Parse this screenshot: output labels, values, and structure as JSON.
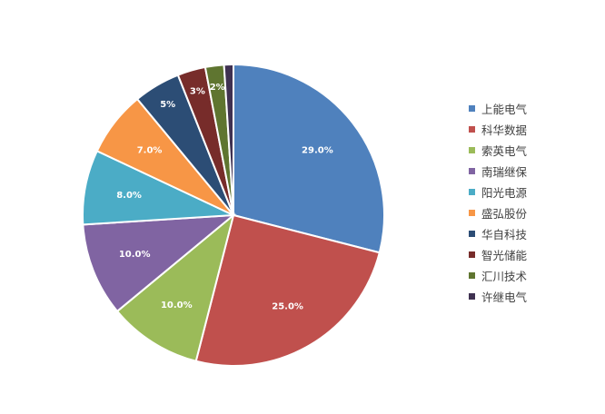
{
  "chart_data": {
    "type": "pie",
    "title": "",
    "slices": [
      {
        "name": "上能电气",
        "value": 29.0,
        "label": "29.0%",
        "color": "#4F81BD"
      },
      {
        "name": "科华数据",
        "value": 25.0,
        "label": "25.0%",
        "color": "#C0504D"
      },
      {
        "name": "索英电气",
        "value": 10.0,
        "label": "10.0%",
        "color": "#9BBB59"
      },
      {
        "name": "南瑞继保",
        "value": 10.0,
        "label": "10.0%",
        "color": "#8064A2"
      },
      {
        "name": "阳光电源",
        "value": 8.0,
        "label": "8.0%",
        "color": "#4BACC6"
      },
      {
        "name": "盛弘股份",
        "value": 7.0,
        "label": "7.0%",
        "color": "#F79646"
      },
      {
        "name": "华自科技",
        "value": 5.0,
        "label": "5%",
        "color": "#2C4D75"
      },
      {
        "name": "智光储能",
        "value": 3.0,
        "label": "3%",
        "color": "#772C2A"
      },
      {
        "name": "汇川技术",
        "value": 2.0,
        "label": "2%",
        "color": "#5F7530"
      },
      {
        "name": "许继电气",
        "value": 1.0,
        "label": "",
        "color": "#3F3151"
      }
    ],
    "legend_position": "right",
    "start_angle": "12 o'clock, clockwise"
  }
}
